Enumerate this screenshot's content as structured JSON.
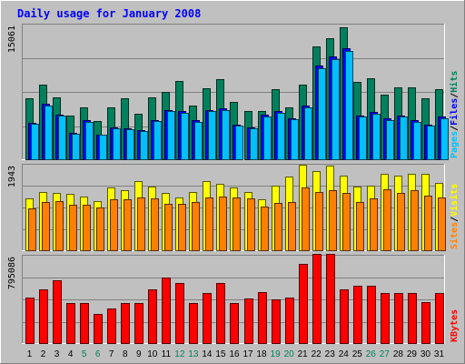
{
  "chart_data": {
    "type": "bar",
    "title": "Daily usage for January 2008",
    "categories": [
      "1",
      "2",
      "3",
      "4",
      "5",
      "6",
      "7",
      "8",
      "9",
      "10",
      "11",
      "12",
      "13",
      "14",
      "15",
      "16",
      "17",
      "18",
      "19",
      "20",
      "21",
      "22",
      "23",
      "24",
      "25",
      "26",
      "27",
      "28",
      "29",
      "30",
      "31"
    ],
    "weekend_days": [
      "5",
      "6",
      "12",
      "13",
      "19",
      "20",
      "26",
      "27"
    ],
    "panels": [
      {
        "id": "top",
        "max_label": "15061",
        "ylim": [
          0,
          15061
        ],
        "legend": [
          "Pages",
          "Files",
          "Hits"
        ],
        "series": [
          {
            "name": "Hits",
            "color": "#00805c",
            "values": [
              6840,
              8310,
              6930,
              4970,
              5850,
              4320,
              5850,
              6840,
              5120,
              6930,
              7580,
              8770,
              6040,
              7950,
              8910,
              6400,
              5400,
              5400,
              7880,
              5850,
              8310,
              12540,
              13460,
              14620,
              8680,
              9050,
              7200,
              7990,
              8010,
              6840,
              7880
            ]
          },
          {
            "name": "Files",
            "color": "#0000ff",
            "values": [
              4120,
              6240,
              5030,
              2990,
              4380,
              2850,
              3660,
              3540,
              3330,
              4460,
              5570,
              5400,
              4370,
              5550,
              5680,
              3930,
              3640,
              5030,
              5380,
              4630,
              6010,
              10480,
              11460,
              12340,
              4950,
              5320,
              4630,
              4950,
              4380,
              3940,
              4780
            ]
          },
          {
            "name": "Pages",
            "color": "#00c0ff",
            "values": [
              4020,
              6050,
              4870,
              2870,
              4210,
              2770,
              3480,
              3430,
              3210,
              4310,
              5410,
              5200,
              4230,
              5390,
              5510,
              3810,
              3520,
              4860,
              5190,
              4470,
              5850,
              10150,
              11140,
              12000,
              4800,
              5150,
              4460,
              4790,
              4230,
              3820,
              4600
            ]
          }
        ]
      },
      {
        "id": "middle",
        "max_label": "1943",
        "ylim": [
          0,
          1943
        ],
        "legend": [
          "Sites",
          "Visits"
        ],
        "series": [
          {
            "name": "Visits",
            "color": "#ffff00",
            "values": [
              1180,
              1320,
              1300,
              1270,
              1210,
              1120,
              1410,
              1360,
              1560,
              1430,
              1300,
              1190,
              1320,
              1550,
              1490,
              1420,
              1320,
              1160,
              1450,
              1660,
              1930,
              1780,
              1900,
              1680,
              1430,
              1460,
              1720,
              1690,
              1730,
              1720,
              1510
            ]
          },
          {
            "name": "Sites",
            "color": "#ff8000",
            "values": [
              950,
              1100,
              1110,
              1030,
              1040,
              970,
              1160,
              1160,
              1190,
              1180,
              1060,
              1060,
              1100,
              1200,
              1210,
              1200,
              1170,
              990,
              1080,
              1100,
              1410,
              1310,
              1350,
              1290,
              1100,
              1180,
              1380,
              1300,
              1360,
              1230,
              1200
            ]
          }
        ]
      },
      {
        "id": "bottom",
        "max_label": "795086",
        "ylim": [
          0,
          795086
        ],
        "legend": [
          "KBytes"
        ],
        "series": [
          {
            "name": "KBytes",
            "color": "#ff0000",
            "values": [
              415000,
              490000,
              566000,
              366000,
              366000,
              266000,
              315000,
              366000,
              366000,
              490000,
              590000,
              540000,
              366000,
              456000,
              546000,
              366000,
              406000,
              464000,
              396000,
              415000,
              716000,
              806000,
              806000,
              490000,
              516000,
              516000,
              456000,
              456000,
              456000,
              376000,
              456000
            ]
          }
        ]
      }
    ]
  }
}
